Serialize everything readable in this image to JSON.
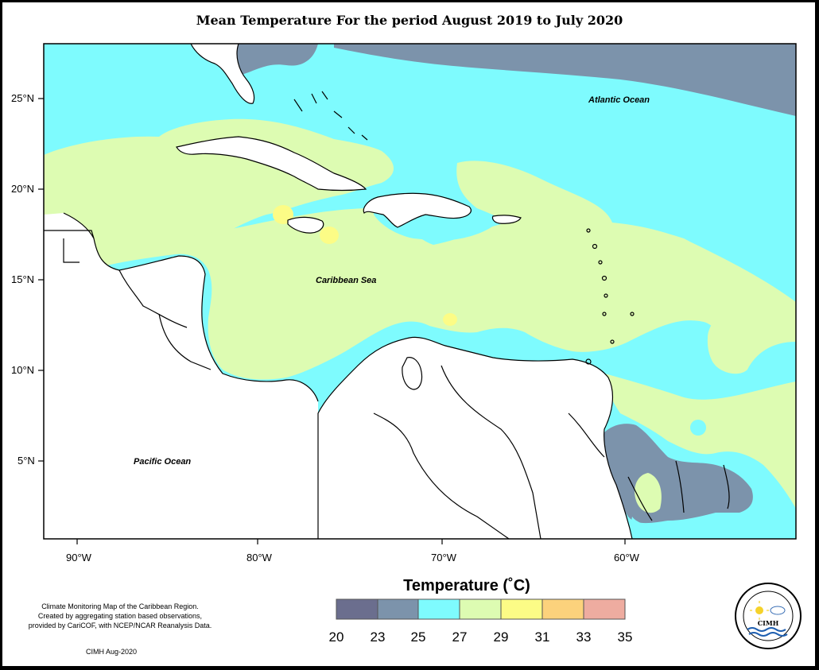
{
  "title": "Mean Temperature For the period August 2019 to July 2020",
  "map": {
    "lat_labels": [
      "25°N",
      "20°N",
      "15°N",
      "10°N",
      "5°N"
    ],
    "lon_labels": [
      "90°W",
      "80°W",
      "70°W",
      "60°W"
    ],
    "places": {
      "atlantic": "Atlantic Ocean",
      "caribbean": "Caribbean Sea",
      "pacific": "Pacific Ocean"
    }
  },
  "legend": {
    "title": "Temperature (˚C)",
    "ticks": [
      "20",
      "23",
      "25",
      "27",
      "29",
      "31",
      "33",
      "35"
    ],
    "colors": [
      "#6b6e8e",
      "#7c93ab",
      "#7efbfe",
      "#ddfcb2",
      "#fcfc86",
      "#fcd27c",
      "#eeaca0"
    ]
  },
  "credit": {
    "line1": "Climate Monitoring Map of the Caribbean Region.",
    "line2": "Created by aggregating station based observations,",
    "line3": "provided by CariCOF, with NCEP/NCAR Reanalysis Data.",
    "date": "CIMH Aug-2020"
  },
  "logo": {
    "name": "CIMH",
    "ring_text": "Caribbean Institute for Meteorology and Hydrology"
  }
}
